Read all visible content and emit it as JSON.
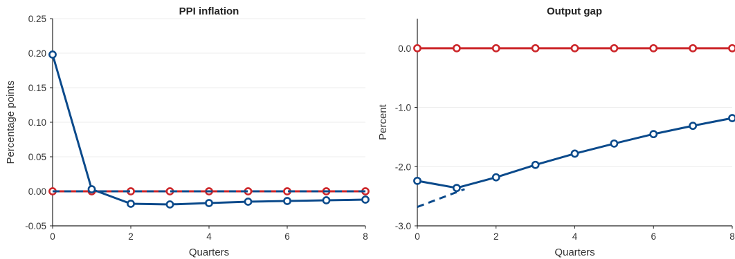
{
  "chart_data": [
    {
      "type": "line",
      "title": "PPI inflation",
      "xlabel": "Quarters",
      "ylabel": "Percentage points",
      "xlim": [
        0,
        8
      ],
      "ylim": [
        -0.05,
        0.25
      ],
      "x_ticks": [
        0,
        2,
        4,
        6,
        8
      ],
      "x_tick_labels": [
        "0",
        "2",
        "4",
        "6",
        "8"
      ],
      "y_ticks": [
        -0.05,
        0.0,
        0.05,
        0.1,
        0.15,
        0.2,
        0.25
      ],
      "y_tick_labels": [
        "-0.05",
        "0.00",
        "0.05",
        "0.10",
        "0.15",
        "0.20",
        "0.25"
      ],
      "grid": "horizontal",
      "x": [
        0,
        1,
        2,
        3,
        4,
        5,
        6,
        7,
        8
      ],
      "series": [
        {
          "color": "#cc2529",
          "style": "solid",
          "markers": true,
          "values": [
            0,
            0,
            0,
            0,
            0,
            0,
            0,
            0,
            0
          ]
        },
        {
          "color": "#0b4a8b",
          "style": "dashed",
          "markers": false,
          "values": [
            0,
            0,
            0,
            0,
            0,
            0,
            0,
            0,
            0
          ]
        },
        {
          "color": "#0b4a8b",
          "style": "solid",
          "markers": true,
          "values": [
            0.198,
            0.003,
            -0.018,
            -0.019,
            -0.017,
            -0.015,
            -0.014,
            -0.013,
            -0.012
          ]
        }
      ]
    },
    {
      "type": "line",
      "title": "Output gap",
      "xlabel": "Quarters",
      "ylabel": "Percent",
      "xlim": [
        0,
        8
      ],
      "ylim": [
        -3.0,
        0.5
      ],
      "x_ticks": [
        0,
        2,
        4,
        6,
        8
      ],
      "x_tick_labels": [
        "0",
        "2",
        "4",
        "6",
        "8"
      ],
      "y_ticks": [
        -3.0,
        -2.0,
        -1.0,
        0.0
      ],
      "y_tick_labels": [
        "-3.0",
        "-2.0",
        "-1.0",
        "0.0"
      ],
      "grid": "horizontal",
      "x": [
        0,
        1,
        2,
        3,
        4,
        5,
        6,
        7,
        8
      ],
      "series": [
        {
          "color": "#cc2529",
          "style": "solid",
          "markers": true,
          "values": [
            0,
            0,
            0,
            0,
            0,
            0,
            0,
            0,
            0
          ]
        },
        {
          "color": "#0b4a8b",
          "style": "dashed",
          "markers": false,
          "x": [
            0,
            1.2
          ],
          "values": [
            -2.68,
            -2.38
          ]
        },
        {
          "color": "#0b4a8b",
          "style": "solid",
          "markers": true,
          "values": [
            -2.24,
            -2.36,
            -2.18,
            -1.97,
            -1.78,
            -1.61,
            -1.45,
            -1.31,
            -1.18
          ]
        }
      ]
    }
  ]
}
